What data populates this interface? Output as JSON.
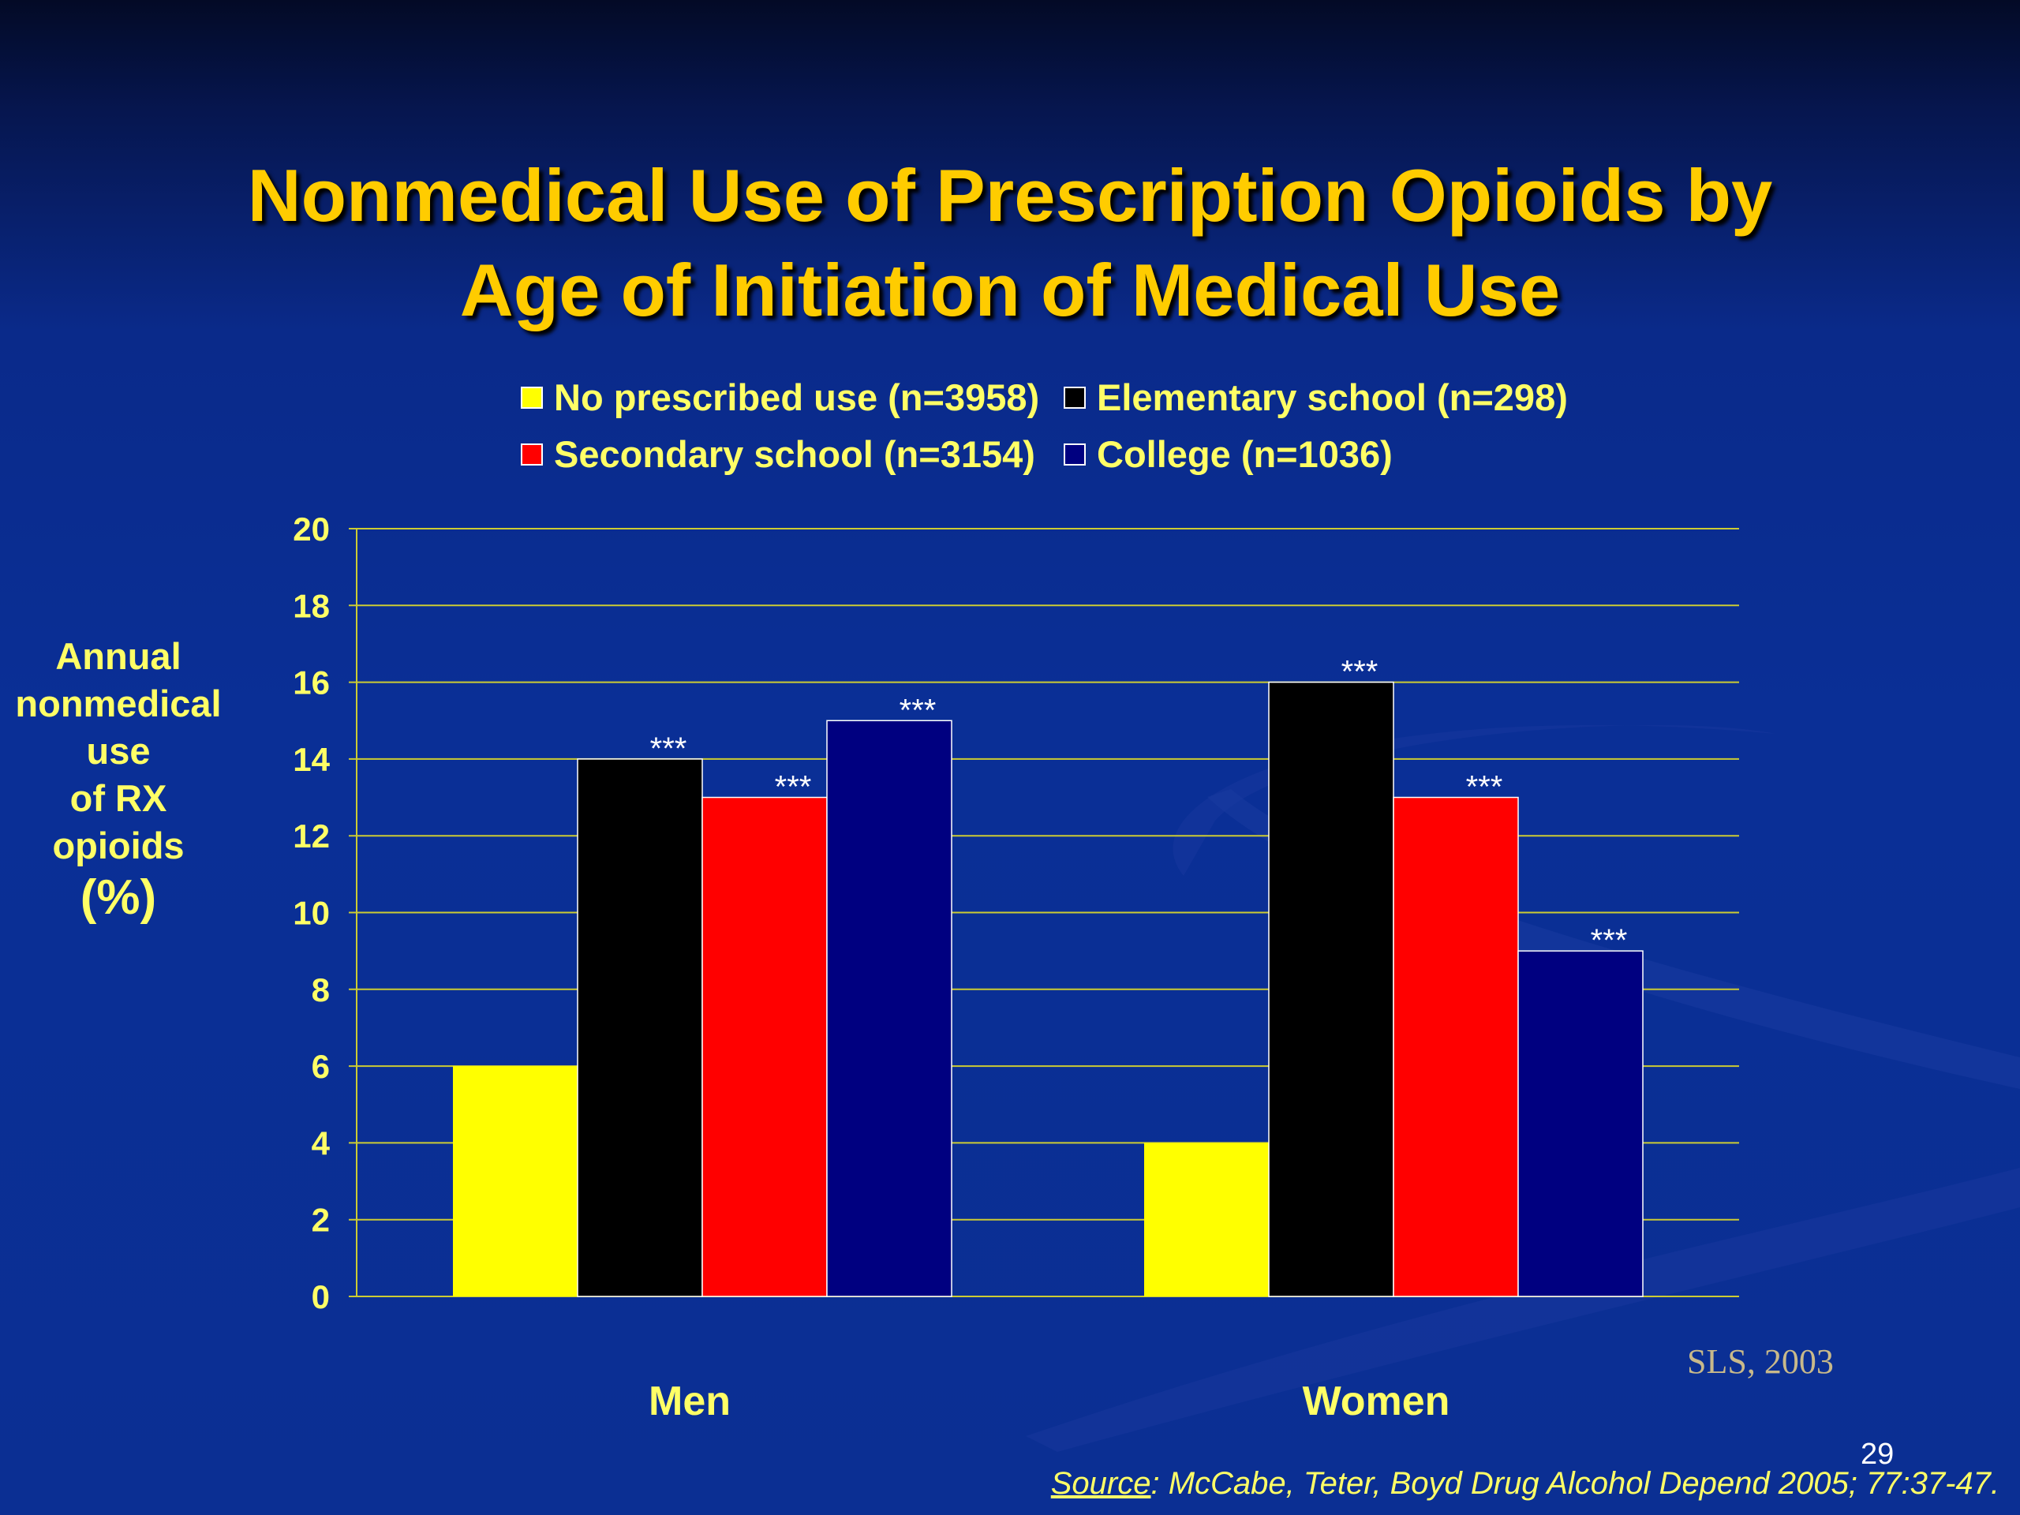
{
  "slide": {
    "title_lines": [
      "Nonmedical Use of Prescription Opioids by",
      "Age of Initiation of Medical Use"
    ],
    "credit": "SLS, 2003",
    "page_number": "29",
    "source_label": "Source",
    "source_text": ": McCabe, Teter, Boyd Drug Alcohol Depend 2005; 77:37-47."
  },
  "chart_data": {
    "type": "bar",
    "categories": [
      "Men",
      "Women"
    ],
    "series": [
      {
        "name": "No prescribed use (n=3958)",
        "color": "#ffff00",
        "values": [
          6,
          4
        ]
      },
      {
        "name": "Elementary school (n=298)",
        "color": "#000000",
        "values": [
          14,
          16
        ]
      },
      {
        "name": "Secondary school (n=3154)",
        "color": "#ff0000",
        "values": [
          13,
          13
        ]
      },
      {
        "name": "College (n=1036)",
        "color": "#000080",
        "values": [
          15,
          9
        ]
      }
    ],
    "annotations": [
      {
        "category": "Men",
        "series": "Elementary school (n=298)",
        "text": "***"
      },
      {
        "category": "Men",
        "series": "Secondary school (n=3154)",
        "text": "***"
      },
      {
        "category": "Men",
        "series": "College (n=1036)",
        "text": "***"
      },
      {
        "category": "Women",
        "series": "Elementary school (n=298)",
        "text": "***"
      },
      {
        "category": "Women",
        "series": "Secondary school (n=3154)",
        "text": "***"
      },
      {
        "category": "Women",
        "series": "College (n=1036)",
        "text": "***"
      }
    ],
    "ylabel_lines": [
      "Annual",
      "nonmedical",
      "use",
      "of RX",
      "opioids",
      "(%)"
    ],
    "ylim": [
      0,
      20
    ],
    "yticks": [
      "0",
      "2",
      "4",
      "6",
      "8",
      "10",
      "12",
      "14",
      "16",
      "18",
      "20"
    ],
    "grid": true,
    "legend_position": "top"
  }
}
